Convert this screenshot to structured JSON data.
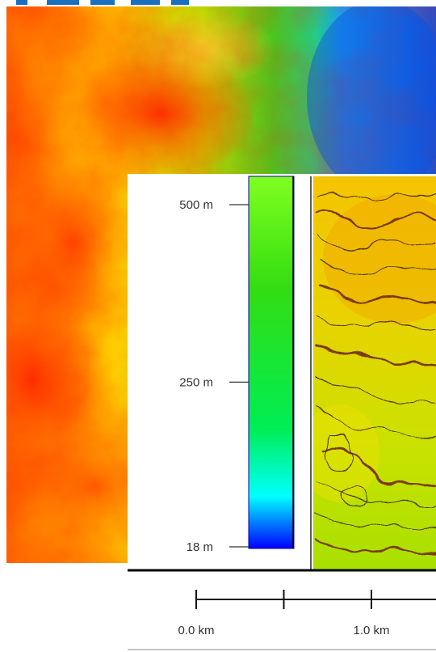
{
  "legend": {
    "ticks": [
      {
        "value": 500,
        "label": "500 m"
      },
      {
        "value": 250,
        "label": "250 m"
      },
      {
        "value": 18,
        "label": "18 m"
      }
    ],
    "range": [
      18,
      520
    ],
    "colors": [
      "#0000ff",
      "#00ffff",
      "#00ff00",
      "#80ff00"
    ]
  },
  "scale_bar": {
    "labels": [
      "0.0 km",
      "1.0 km"
    ],
    "marks_km": [
      0,
      0.5,
      1.0
    ]
  },
  "colors": {
    "contour_major": "#7a3b12",
    "contour_minor": "#4a3010",
    "title_partial": "#1a6fbf"
  }
}
